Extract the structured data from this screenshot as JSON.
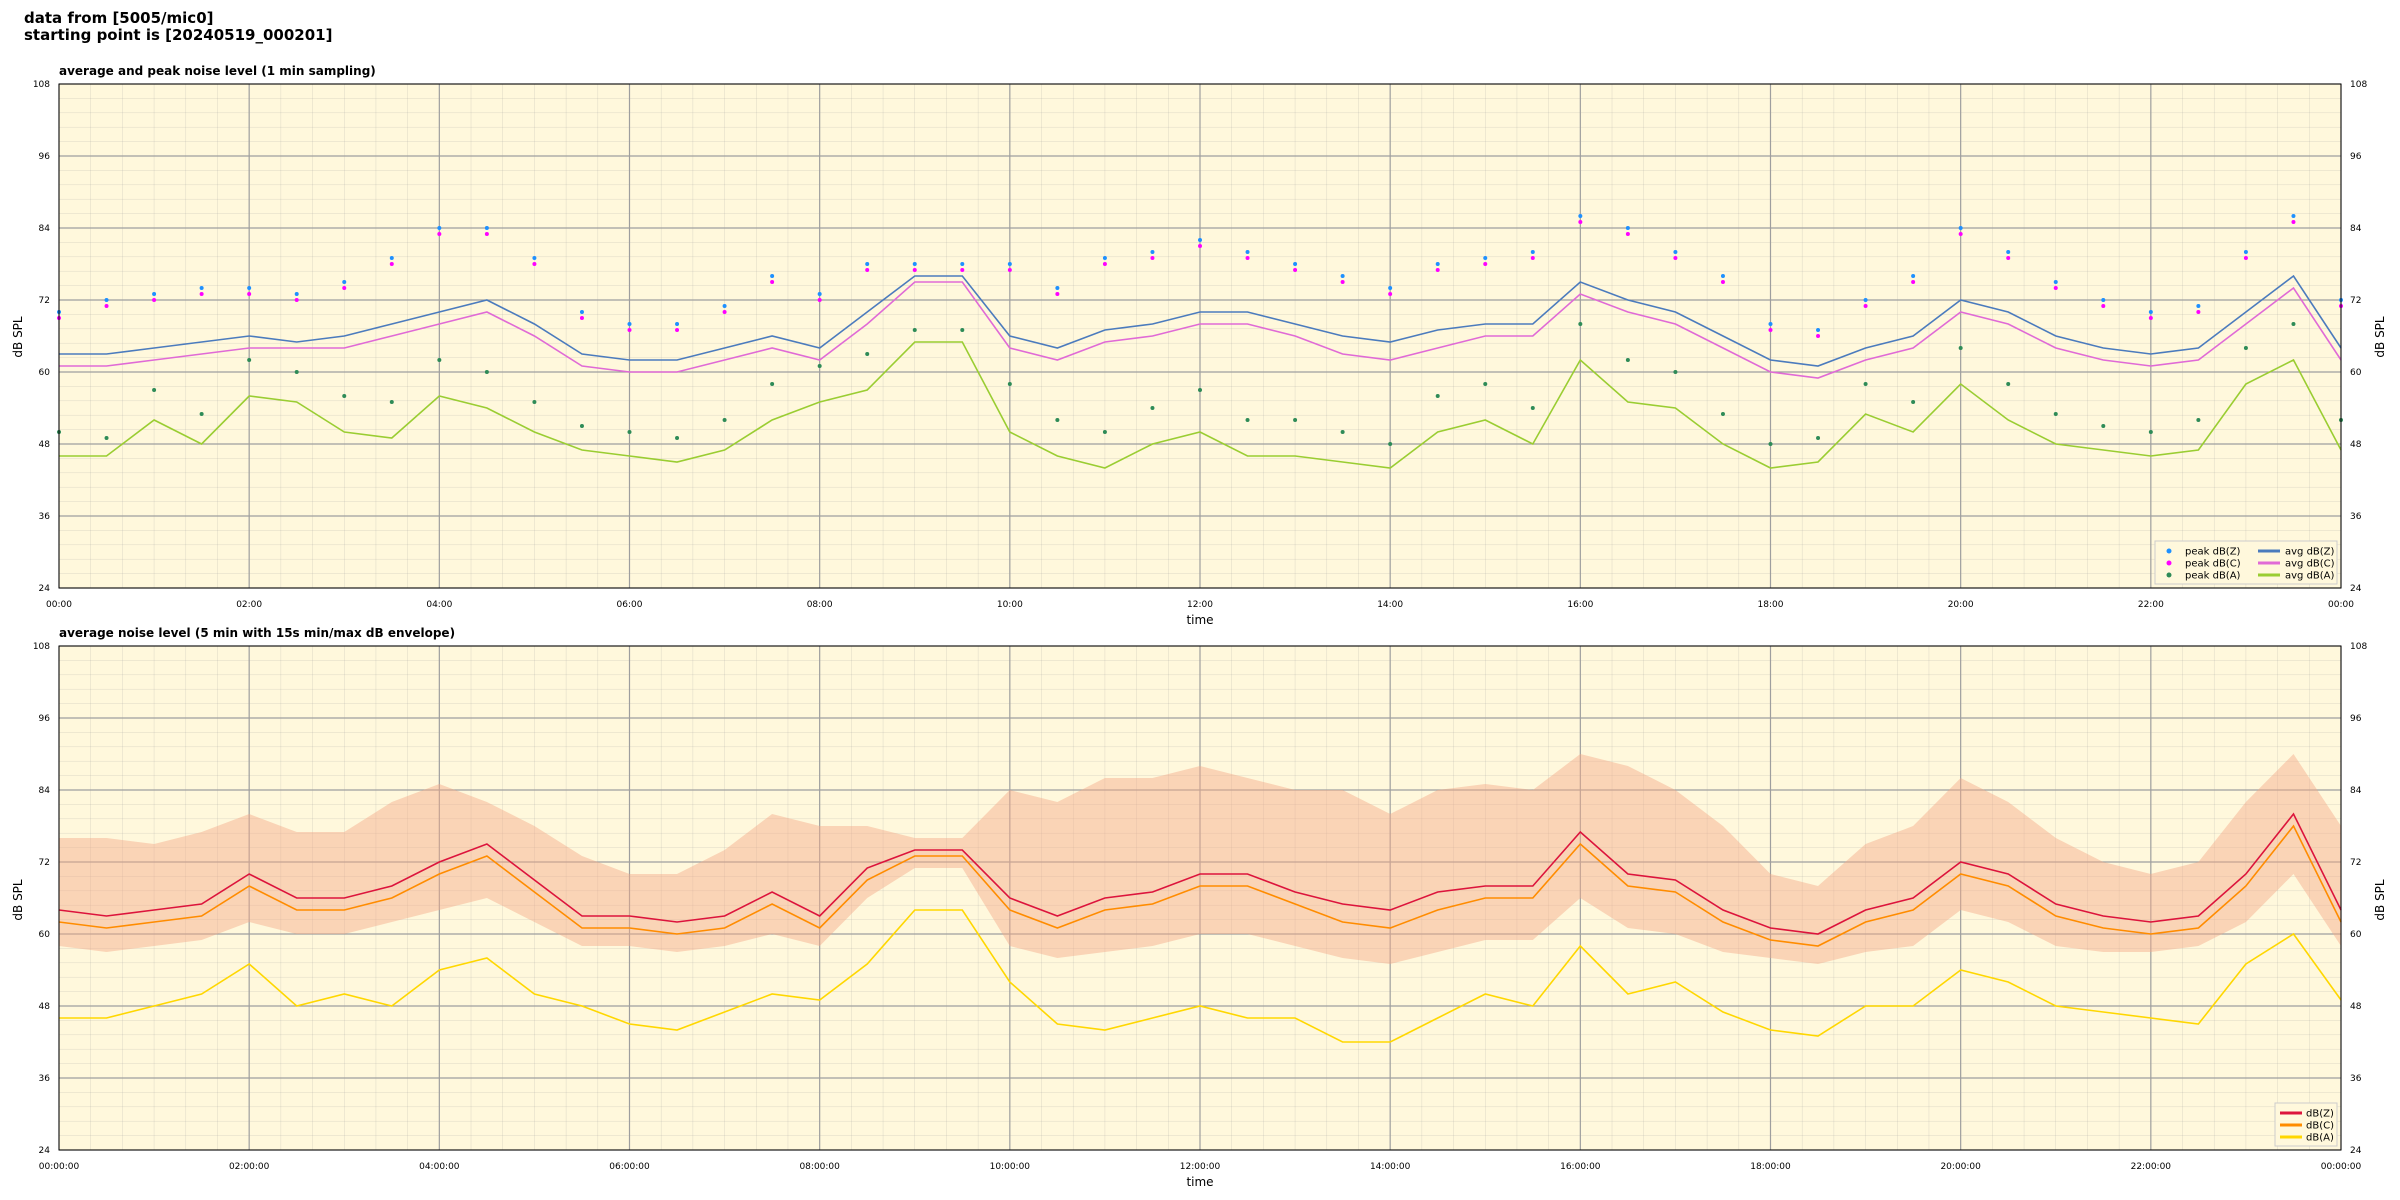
{
  "header": {
    "line1": "data from [5005/mic0]",
    "line2": "starting point is [20240519_000201]"
  },
  "colors": {
    "background": "#fff8dc",
    "grid": "#9e9e9e",
    "avg_z": "#4b7bbd",
    "avg_c": "#e06ad6",
    "avg_a": "#9acd32",
    "peak_z": "#1e90ff",
    "peak_c": "#ff00ff",
    "peak_a": "#2e8b57",
    "z5": "#dc143c",
    "c5": "#ff8c00",
    "a5": "#ffd700",
    "envelope": "#f4a987"
  },
  "chart_data": [
    {
      "type": "line",
      "title": "average and peak noise level (1 min sampling)",
      "xlabel": "time",
      "ylabel": "dB SPL",
      "ylim": [
        24,
        108
      ],
      "xlim_hours": [
        0,
        24
      ],
      "yticks": [
        "24",
        "36",
        "48",
        "60",
        "72",
        "84",
        "96",
        "108"
      ],
      "xticks": [
        "00:00",
        "02:00",
        "04:00",
        "06:00",
        "08:00",
        "10:00",
        "12:00",
        "14:00",
        "16:00",
        "18:00",
        "20:00",
        "22:00",
        "00:00"
      ],
      "grid": true,
      "legend_position": "lower-right",
      "legend": {
        "col1": [
          "peak dB(Z)",
          "peak dB(C)",
          "peak dB(A)"
        ],
        "col2": [
          "avg dB(Z)",
          "avg dB(C)",
          "avg dB(A)"
        ]
      },
      "x_hours": [
        0,
        0.5,
        1,
        1.5,
        2,
        2.5,
        3,
        3.5,
        4,
        4.5,
        5,
        5.5,
        6,
        6.5,
        7,
        7.5,
        8,
        8.5,
        9,
        9.5,
        10,
        10.5,
        11,
        11.5,
        12,
        12.5,
        13,
        13.5,
        14,
        14.5,
        15,
        15.5,
        16,
        16.5,
        17,
        17.5,
        18,
        18.5,
        19,
        19.5,
        20,
        20.5,
        21,
        21.5,
        22,
        22.5,
        23,
        23.5,
        24
      ],
      "series": [
        {
          "name": "avg dB(Z)",
          "values": [
            63,
            63,
            64,
            65,
            66,
            65,
            66,
            68,
            70,
            72,
            68,
            63,
            62,
            62,
            64,
            66,
            64,
            70,
            76,
            76,
            66,
            64,
            67,
            68,
            70,
            70,
            68,
            66,
            65,
            67,
            68,
            68,
            75,
            72,
            70,
            66,
            62,
            61,
            64,
            66,
            72,
            70,
            66,
            64,
            63,
            64,
            70,
            76,
            64
          ]
        },
        {
          "name": "avg dB(C)",
          "values": [
            61,
            61,
            62,
            63,
            64,
            64,
            64,
            66,
            68,
            70,
            66,
            61,
            60,
            60,
            62,
            64,
            62,
            68,
            75,
            75,
            64,
            62,
            65,
            66,
            68,
            68,
            66,
            63,
            62,
            64,
            66,
            66,
            73,
            70,
            68,
            64,
            60,
            59,
            62,
            64,
            70,
            68,
            64,
            62,
            61,
            62,
            68,
            74,
            62
          ]
        },
        {
          "name": "avg dB(A)",
          "values": [
            46,
            46,
            52,
            48,
            56,
            55,
            50,
            49,
            56,
            54,
            50,
            47,
            46,
            45,
            47,
            52,
            55,
            57,
            65,
            65,
            50,
            46,
            44,
            48,
            50,
            46,
            46,
            45,
            44,
            50,
            52,
            48,
            62,
            55,
            54,
            48,
            44,
            45,
            53,
            50,
            58,
            52,
            48,
            47,
            46,
            47,
            58,
            62,
            47
          ]
        },
        {
          "name": "peak dB(Z)",
          "values": [
            70,
            72,
            73,
            74,
            74,
            73,
            75,
            79,
            84,
            84,
            79,
            70,
            68,
            68,
            71,
            76,
            73,
            78,
            78,
            78,
            78,
            74,
            79,
            80,
            82,
            80,
            78,
            76,
            74,
            78,
            79,
            80,
            86,
            84,
            80,
            76,
            68,
            67,
            72,
            76,
            84,
            80,
            75,
            72,
            70,
            71,
            80,
            86,
            72
          ]
        },
        {
          "name": "peak dB(C)",
          "values": [
            69,
            71,
            72,
            73,
            73,
            72,
            74,
            78,
            83,
            83,
            78,
            69,
            67,
            67,
            70,
            75,
            72,
            77,
            77,
            77,
            77,
            73,
            78,
            79,
            81,
            79,
            77,
            75,
            73,
            77,
            78,
            79,
            85,
            83,
            79,
            75,
            67,
            66,
            71,
            75,
            83,
            79,
            74,
            71,
            69,
            70,
            79,
            85,
            71
          ]
        },
        {
          "name": "peak dB(A)",
          "values": [
            50,
            49,
            57,
            53,
            62,
            60,
            56,
            55,
            62,
            60,
            55,
            51,
            50,
            49,
            52,
            58,
            61,
            63,
            67,
            67,
            58,
            52,
            50,
            54,
            57,
            52,
            52,
            50,
            48,
            56,
            58,
            54,
            68,
            62,
            60,
            53,
            48,
            49,
            58,
            55,
            64,
            58,
            53,
            51,
            50,
            52,
            64,
            68,
            52
          ]
        }
      ]
    },
    {
      "type": "line",
      "title": "average noise level (5 min with 15s min/max dB envelope)",
      "xlabel": "time",
      "ylabel": "dB SPL",
      "ylim": [
        24,
        108
      ],
      "xlim_hours": [
        0,
        24
      ],
      "yticks": [
        "24",
        "36",
        "48",
        "60",
        "72",
        "84",
        "96",
        "108"
      ],
      "xticks": [
        "00:00:00",
        "02:00:00",
        "04:00:00",
        "06:00:00",
        "08:00:00",
        "10:00:00",
        "12:00:00",
        "14:00:00",
        "16:00:00",
        "18:00:00",
        "20:00:00",
        "22:00:00",
        "00:00:00"
      ],
      "grid": true,
      "legend_position": "lower-right",
      "legend": [
        "dB(Z)",
        "dB(C)",
        "dB(A)"
      ],
      "x_hours": [
        0,
        0.5,
        1,
        1.5,
        2,
        2.5,
        3,
        3.5,
        4,
        4.5,
        5,
        5.5,
        6,
        6.5,
        7,
        7.5,
        8,
        8.5,
        9,
        9.5,
        10,
        10.5,
        11,
        11.5,
        12,
        12.5,
        13,
        13.5,
        14,
        14.5,
        15,
        15.5,
        16,
        16.5,
        17,
        17.5,
        18,
        18.5,
        19,
        19.5,
        20,
        20.5,
        21,
        21.5,
        22,
        22.5,
        23,
        23.5,
        24
      ],
      "series": [
        {
          "name": "dB(Z)",
          "values": [
            64,
            63,
            64,
            65,
            70,
            66,
            66,
            68,
            72,
            75,
            69,
            63,
            63,
            62,
            63,
            67,
            63,
            71,
            74,
            74,
            66,
            63,
            66,
            67,
            70,
            70,
            67,
            65,
            64,
            67,
            68,
            68,
            77,
            70,
            69,
            64,
            61,
            60,
            64,
            66,
            72,
            70,
            65,
            63,
            62,
            63,
            70,
            80,
            64
          ]
        },
        {
          "name": "dB(C)",
          "values": [
            62,
            61,
            62,
            63,
            68,
            64,
            64,
            66,
            70,
            73,
            67,
            61,
            61,
            60,
            61,
            65,
            61,
            69,
            73,
            73,
            64,
            61,
            64,
            65,
            68,
            68,
            65,
            62,
            61,
            64,
            66,
            66,
            75,
            68,
            67,
            62,
            59,
            58,
            62,
            64,
            70,
            68,
            63,
            61,
            60,
            61,
            68,
            78,
            62
          ]
        },
        {
          "name": "dB(A)",
          "values": [
            46,
            46,
            48,
            50,
            55,
            48,
            50,
            48,
            54,
            56,
            50,
            48,
            45,
            44,
            47,
            50,
            49,
            55,
            64,
            64,
            52,
            45,
            44,
            46,
            48,
            46,
            46,
            42,
            42,
            46,
            50,
            48,
            58,
            50,
            52,
            47,
            44,
            43,
            48,
            48,
            54,
            52,
            48,
            47,
            46,
            45,
            55,
            60,
            49
          ]
        }
      ],
      "envelope": {
        "name": "min/max",
        "low": [
          58,
          57,
          58,
          59,
          62,
          60,
          60,
          62,
          64,
          66,
          62,
          58,
          58,
          57,
          58,
          60,
          58,
          66,
          71,
          71,
          58,
          56,
          57,
          58,
          60,
          60,
          58,
          56,
          55,
          57,
          59,
          59,
          66,
          61,
          60,
          57,
          56,
          55,
          57,
          58,
          64,
          62,
          58,
          57,
          57,
          58,
          62,
          70,
          58
        ],
        "high": [
          76,
          76,
          75,
          77,
          80,
          77,
          77,
          82,
          85,
          82,
          78,
          73,
          70,
          70,
          74,
          80,
          78,
          78,
          76,
          76,
          84,
          82,
          86,
          86,
          88,
          86,
          84,
          84,
          80,
          84,
          85,
          84,
          90,
          88,
          84,
          78,
          70,
          68,
          75,
          78,
          86,
          82,
          76,
          72,
          70,
          72,
          82,
          90,
          78
        ]
      }
    }
  ]
}
